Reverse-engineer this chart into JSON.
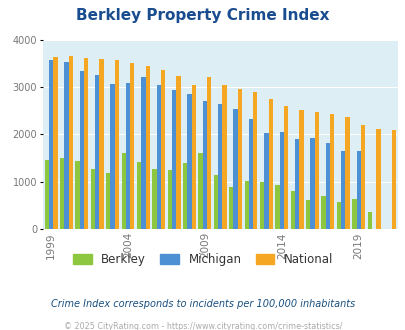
{
  "title": "Berkley Property Crime Index",
  "title_color": "#1a4d8f",
  "years": [
    1999,
    2000,
    2001,
    2002,
    2003,
    2004,
    2005,
    2006,
    2007,
    2008,
    2009,
    2010,
    2011,
    2012,
    2013,
    2014,
    2015,
    2016,
    2017,
    2018,
    2019,
    2020,
    2021
  ],
  "berkley": [
    1470,
    1510,
    1440,
    1270,
    1190,
    1620,
    1410,
    1280,
    1260,
    1400,
    1600,
    1150,
    890,
    1010,
    1000,
    940,
    800,
    620,
    700,
    570,
    630,
    370,
    null
  ],
  "michigan": [
    3560,
    3530,
    3340,
    3260,
    3070,
    3080,
    3210,
    3050,
    2940,
    2850,
    2700,
    2640,
    2540,
    2330,
    2040,
    2050,
    1910,
    1930,
    1810,
    1650,
    1650,
    null,
    null
  ],
  "national": [
    3630,
    3650,
    3610,
    3590,
    3560,
    3500,
    3440,
    3350,
    3230,
    3050,
    3210,
    3050,
    2960,
    2890,
    2750,
    2610,
    2510,
    2470,
    2430,
    2370,
    2200,
    2120,
    2100
  ],
  "berkley_color": "#8dc63f",
  "michigan_color": "#4d90d4",
  "national_color": "#f5a623",
  "plot_bg": "#ddeef5",
  "tick_color": "#777777",
  "ylim": [
    0,
    4000
  ],
  "yticks": [
    0,
    1000,
    2000,
    3000,
    4000
  ],
  "xlabel_ticks": [
    1999,
    2004,
    2009,
    2014,
    2019
  ],
  "footnote": "Crime Index corresponds to incidents per 100,000 inhabitants",
  "credit": "© 2025 CityRating.com - https://www.cityrating.com/crime-statistics/",
  "footnote_color": "#1a5080",
  "credit_color": "#aaaaaa",
  "bar_width": 0.28,
  "legend_labels": [
    "Berkley",
    "Michigan",
    "National"
  ],
  "figsize": [
    4.06,
    3.3
  ],
  "dpi": 100
}
